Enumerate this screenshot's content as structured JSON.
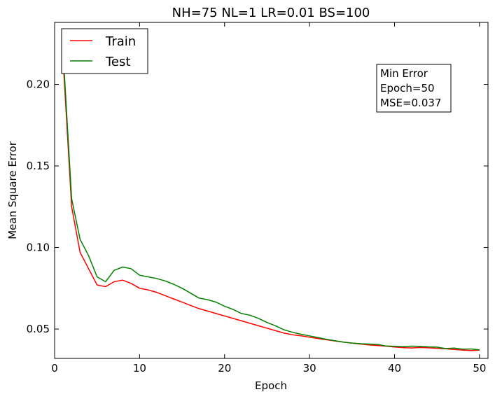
{
  "chart_data": {
    "type": "line",
    "title": "NH=75 NL=1 LR=0.01 BS=100",
    "xlabel": "Epoch",
    "ylabel": "Mean Square Error",
    "xlim": [
      0,
      51
    ],
    "ylim": [
      0.032,
      0.238
    ],
    "xticks": [
      0,
      10,
      20,
      30,
      40,
      50
    ],
    "yticks": [
      0.05,
      0.1,
      0.15,
      0.2
    ],
    "ytick_labels": [
      "0.05",
      "0.10",
      "0.15",
      "0.20"
    ],
    "legend_position": "top-left",
    "annotation": [
      "Min Error",
      "Epoch=50",
      "MSE=0.037"
    ],
    "x": [
      1,
      2,
      3,
      4,
      5,
      6,
      7,
      8,
      9,
      10,
      11,
      12,
      13,
      14,
      15,
      16,
      17,
      18,
      19,
      20,
      21,
      22,
      23,
      24,
      25,
      26,
      27,
      28,
      29,
      30,
      31,
      32,
      33,
      34,
      35,
      36,
      37,
      38,
      39,
      40,
      41,
      42,
      43,
      44,
      45,
      46,
      47,
      48,
      49,
      50
    ],
    "series": [
      {
        "name": "Train",
        "color": "#ff0000",
        "values": [
          0.215,
          0.125,
          0.097,
          0.087,
          0.077,
          0.076,
          0.079,
          0.08,
          0.078,
          0.075,
          0.074,
          0.0725,
          0.0705,
          0.0685,
          0.0665,
          0.0645,
          0.0625,
          0.061,
          0.0595,
          0.058,
          0.0565,
          0.055,
          0.0535,
          0.052,
          0.0505,
          0.049,
          0.0475,
          0.0465,
          0.0458,
          0.045,
          0.0442,
          0.0434,
          0.0427,
          0.042,
          0.0414,
          0.0408,
          0.0403,
          0.0399,
          0.0395,
          0.039,
          0.0386,
          0.0384,
          0.0387,
          0.0385,
          0.0382,
          0.0379,
          0.0375,
          0.0371,
          0.0368,
          0.037
        ]
      },
      {
        "name": "Test",
        "color": "#008000",
        "values": [
          0.22,
          0.13,
          0.105,
          0.095,
          0.082,
          0.079,
          0.086,
          0.088,
          0.087,
          0.083,
          0.082,
          0.081,
          0.0795,
          0.0775,
          0.075,
          0.072,
          0.069,
          0.068,
          0.0665,
          0.064,
          0.062,
          0.0595,
          0.0585,
          0.0565,
          0.054,
          0.052,
          0.0495,
          0.048,
          0.0468,
          0.0458,
          0.0448,
          0.0437,
          0.0428,
          0.042,
          0.0414,
          0.041,
          0.0408,
          0.0406,
          0.0396,
          0.0394,
          0.0392,
          0.0395,
          0.0394,
          0.0391,
          0.0389,
          0.038,
          0.0383,
          0.0377,
          0.0378,
          0.0373
        ]
      }
    ]
  }
}
